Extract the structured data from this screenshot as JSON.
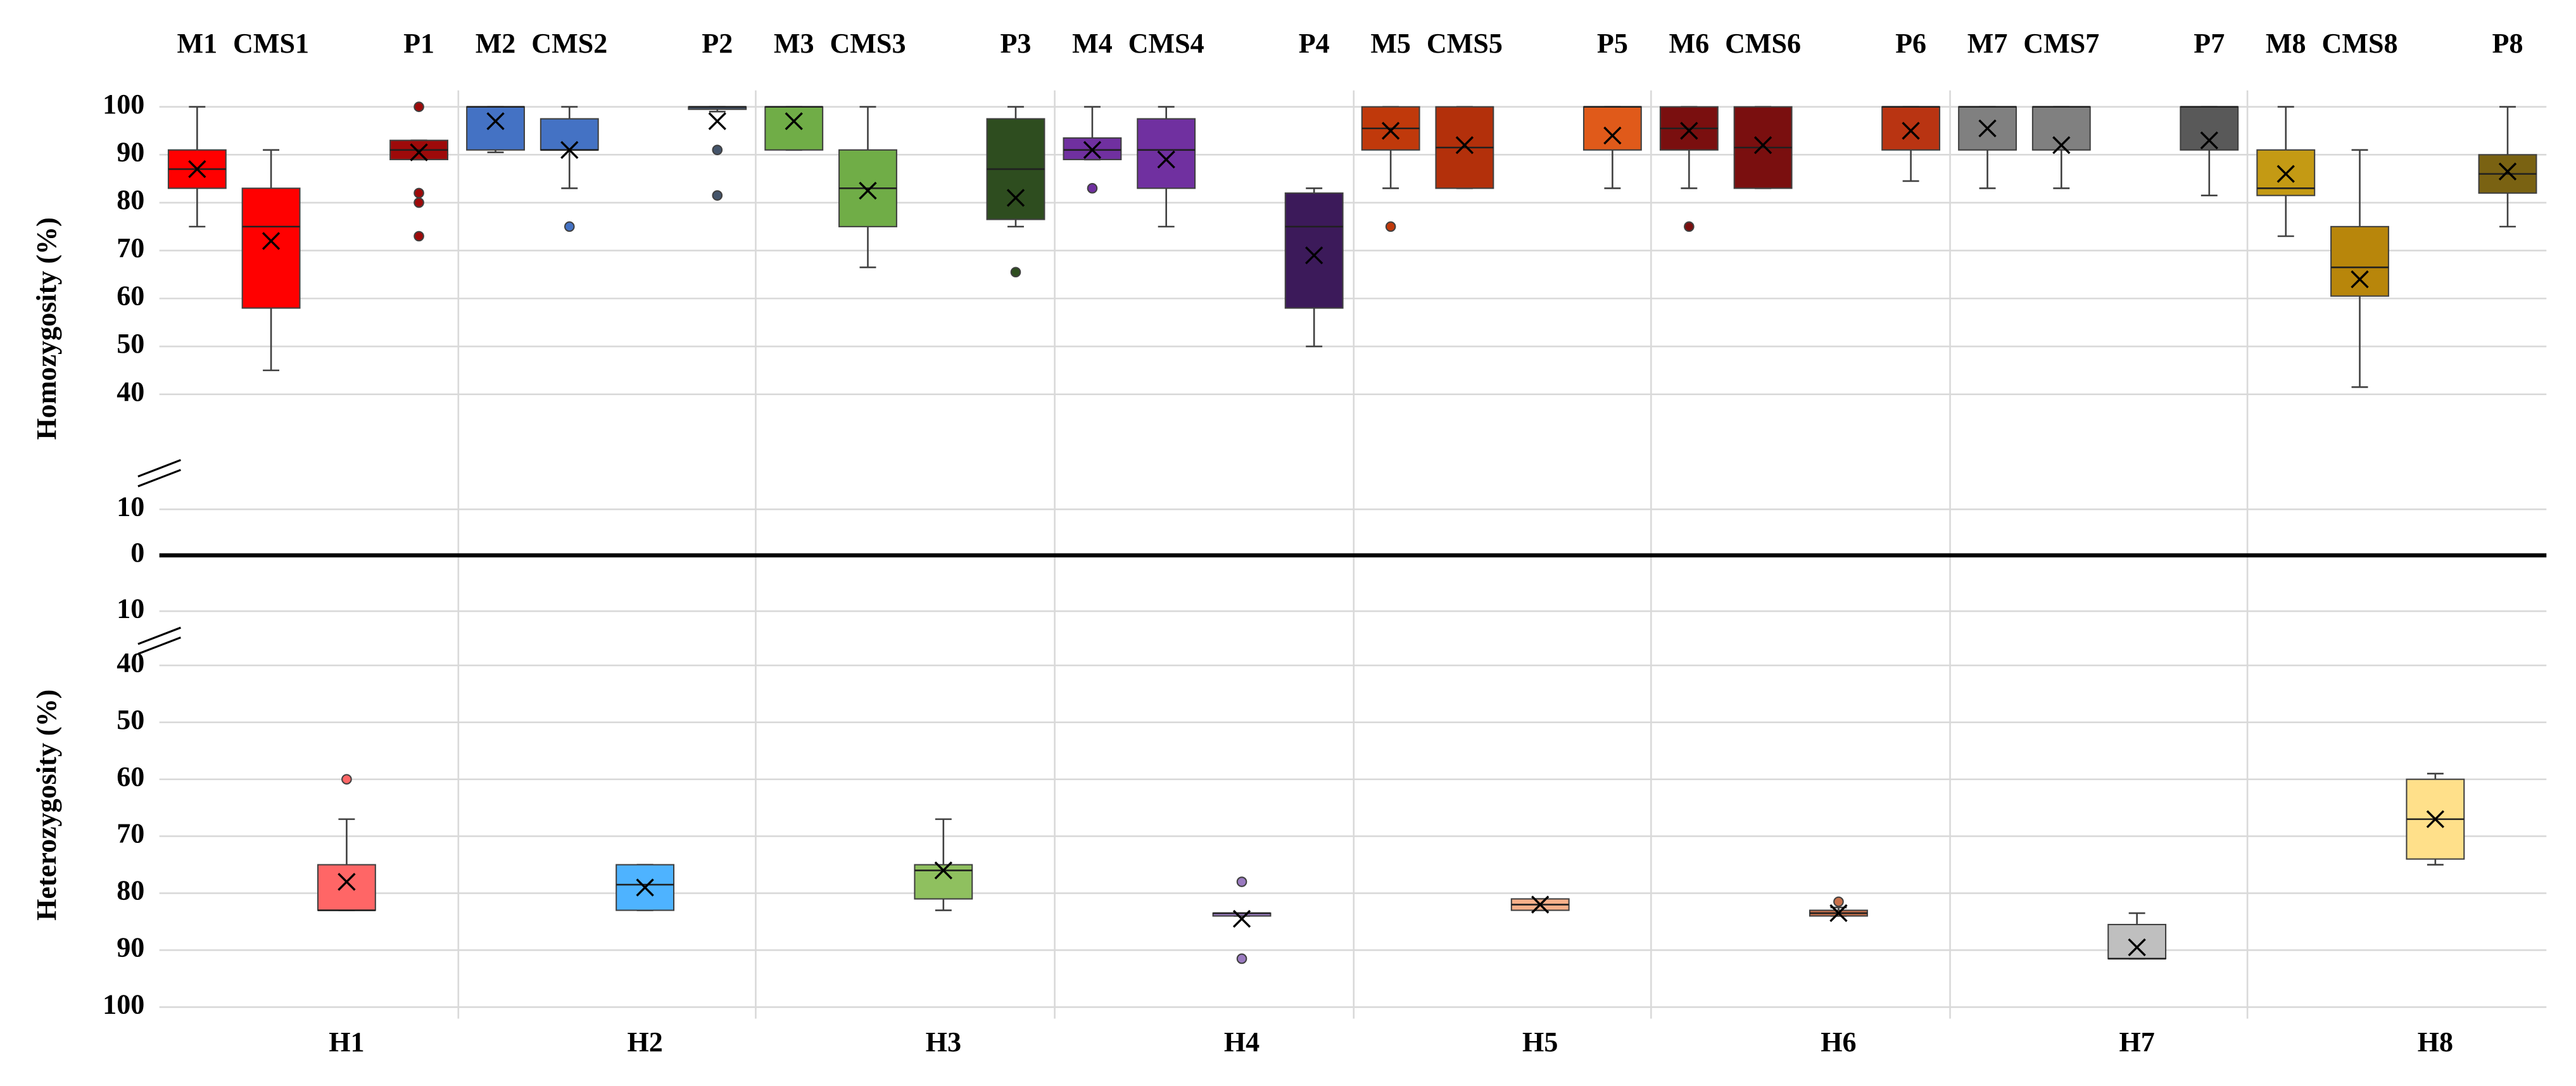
{
  "chart_data": [
    {
      "type": "box",
      "ylabel": "Homozygosity (%)",
      "ylim": [
        0,
        100
      ],
      "axis_break": [
        10,
        40
      ],
      "inverted": false,
      "grid": true,
      "yticks": [
        0,
        10,
        40,
        50,
        60,
        70,
        80,
        90,
        100
      ],
      "series": [
        {
          "name": "M1",
          "color": "#ff0000",
          "min": 75,
          "q1": 83,
          "median": 87,
          "q3": 91,
          "max": 100,
          "mean": 87,
          "outliers": []
        },
        {
          "name": "CMS1",
          "color": "#ff0000",
          "min": 45,
          "q1": 58,
          "median": 75,
          "q3": 83,
          "max": 91,
          "mean": 72,
          "outliers": []
        },
        {
          "name": "P1",
          "color": "#9e0a0a",
          "min": 89,
          "q1": 89,
          "median": 91,
          "q3": 93,
          "max": 93,
          "mean": 90.5,
          "outliers": [
            100,
            82,
            80,
            73
          ]
        },
        {
          "name": "M2",
          "color": "#4472c4",
          "min": 90.5,
          "q1": 91,
          "median": 100,
          "q3": 100,
          "max": 100,
          "mean": 97,
          "outliers": []
        },
        {
          "name": "CMS2",
          "color": "#4472c4",
          "min": 83,
          "q1": 91,
          "median": 91,
          "q3": 97.5,
          "max": 100,
          "mean": 91,
          "outliers": [
            75
          ]
        },
        {
          "name": "P2",
          "color": "#44546a",
          "min": 99,
          "q1": 99.5,
          "median": 100,
          "q3": 100,
          "max": 100,
          "mean": 97,
          "outliers": [
            91,
            81.5
          ]
        },
        {
          "name": "M3",
          "color": "#70ad47",
          "min": 91,
          "q1": 91,
          "median": 100,
          "q3": 100,
          "max": 100,
          "mean": 97,
          "outliers": []
        },
        {
          "name": "CMS3",
          "color": "#70ad47",
          "min": 66.5,
          "q1": 75,
          "median": 83,
          "q3": 91,
          "max": 100,
          "mean": 82.5,
          "outliers": []
        },
        {
          "name": "P3",
          "color": "#2e4d1f",
          "min": 75,
          "q1": 76.5,
          "median": 87,
          "q3": 97.5,
          "max": 100,
          "mean": 81,
          "outliers": [
            65.5
          ]
        },
        {
          "name": "M4",
          "color": "#7030a0",
          "min": 89,
          "q1": 89,
          "median": 91,
          "q3": 93.5,
          "max": 100,
          "mean": 91,
          "outliers": [
            83
          ]
        },
        {
          "name": "CMS4",
          "color": "#7030a0",
          "min": 75,
          "q1": 83,
          "median": 91,
          "q3": 97.5,
          "max": 100,
          "mean": 89,
          "outliers": []
        },
        {
          "name": "P4",
          "color": "#3c1a5a",
          "min": 50,
          "q1": 58,
          "median": 75,
          "q3": 82,
          "max": 83,
          "mean": 69,
          "outliers": []
        },
        {
          "name": "M5",
          "color": "#c0390b",
          "min": 83,
          "q1": 91,
          "median": 95.5,
          "q3": 100,
          "max": 100,
          "mean": 95,
          "outliers": [
            75
          ]
        },
        {
          "name": "CMS5",
          "color": "#b3300b",
          "min": 83,
          "q1": 83,
          "median": 91.5,
          "q3": 100,
          "max": 100,
          "mean": 92,
          "outliers": []
        },
        {
          "name": "P5",
          "color": "#e05a1a",
          "min": 83,
          "q1": 91,
          "median": 100,
          "q3": 100,
          "max": 100,
          "mean": 94,
          "outliers": []
        },
        {
          "name": "M6",
          "color": "#7a0f0f",
          "min": 83,
          "q1": 91,
          "median": 95.5,
          "q3": 100,
          "max": 100,
          "mean": 95,
          "outliers": [
            75
          ]
        },
        {
          "name": "CMS6",
          "color": "#7a0f0f",
          "min": 83,
          "q1": 83,
          "median": 91.5,
          "q3": 100,
          "max": 100,
          "mean": 92,
          "outliers": []
        },
        {
          "name": "P6",
          "color": "#b93412",
          "min": 84.5,
          "q1": 91,
          "median": 100,
          "q3": 100,
          "max": 100,
          "mean": 95,
          "outliers": []
        },
        {
          "name": "M7",
          "color": "#808080",
          "min": 83,
          "q1": 91,
          "median": 100,
          "q3": 100,
          "max": 100,
          "mean": 95.5,
          "outliers": []
        },
        {
          "name": "CMS7",
          "color": "#808080",
          "min": 83,
          "q1": 91,
          "median": 100,
          "q3": 100,
          "max": 100,
          "mean": 92,
          "outliers": []
        },
        {
          "name": "P7",
          "color": "#595959",
          "min": 81.5,
          "q1": 91,
          "median": 100,
          "q3": 100,
          "max": 100,
          "mean": 93,
          "outliers": []
        },
        {
          "name": "M8",
          "color": "#c49a14",
          "min": 73,
          "q1": 81.5,
          "median": 83,
          "q3": 91,
          "max": 100,
          "mean": 86,
          "outliers": []
        },
        {
          "name": "CMS8",
          "color": "#b8860b",
          "min": 41.5,
          "q1": 60.5,
          "median": 66.5,
          "q3": 75,
          "max": 91,
          "mean": 64,
          "outliers": []
        },
        {
          "name": "P8",
          "color": "#7a6212",
          "min": 75,
          "q1": 82,
          "median": 86,
          "q3": 90,
          "max": 100,
          "mean": 86.5,
          "outliers": []
        }
      ]
    },
    {
      "type": "box",
      "ylabel": "Heterozygosity (%)",
      "ylim": [
        0,
        100
      ],
      "axis_break": [
        10,
        40
      ],
      "inverted": true,
      "grid": true,
      "yticks": [
        10,
        40,
        50,
        60,
        70,
        80,
        90,
        100
      ],
      "series": [
        {
          "name": "H1",
          "color": "#ff6666",
          "min": 67,
          "q1": 75,
          "median": 83,
          "q3": 83,
          "max": 83,
          "mean": 78,
          "outliers": [
            60
          ]
        },
        {
          "name": "H2",
          "color": "#4eb3ff",
          "min": 75,
          "q1": 75,
          "median": 78.5,
          "q3": 83,
          "max": 83,
          "mean": 79,
          "outliers": []
        },
        {
          "name": "H3",
          "color": "#8fc05f",
          "min": 67,
          "q1": 75,
          "median": 76,
          "q3": 81,
          "max": 83,
          "mean": 76,
          "outliers": []
        },
        {
          "name": "H4",
          "color": "#9a7ac0",
          "min": 83.5,
          "q1": 83.5,
          "median": 83.5,
          "q3": 84,
          "max": 84,
          "mean": 84.5,
          "outliers": [
            78,
            91.5
          ]
        },
        {
          "name": "H5",
          "color": "#f7b08a",
          "min": 81,
          "q1": 81,
          "median": 82,
          "q3": 83,
          "max": 83,
          "mean": 82,
          "outliers": []
        },
        {
          "name": "H6",
          "color": "#c8704a",
          "min": 82.5,
          "q1": 83,
          "median": 83.5,
          "q3": 84,
          "max": 84,
          "mean": 83.5,
          "outliers": [
            81.5
          ]
        },
        {
          "name": "H7",
          "color": "#bfbfbf",
          "min": 83.5,
          "q1": 85.5,
          "median": 91.5,
          "q3": 91.5,
          "max": 91.5,
          "mean": 89.5,
          "outliers": []
        },
        {
          "name": "H8",
          "color": "#ffe08a",
          "min": 59,
          "q1": 60,
          "median": 67,
          "q3": 74,
          "max": 75,
          "mean": 67,
          "outliers": []
        }
      ]
    }
  ]
}
